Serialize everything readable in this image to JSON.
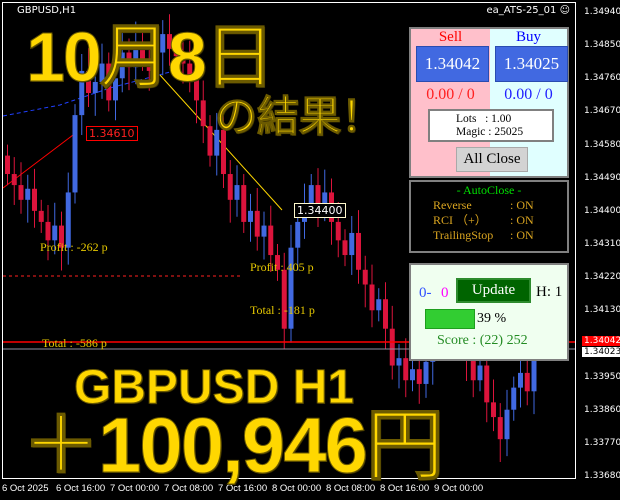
{
  "header": {
    "symbol": "GBPUSD,H1",
    "ea_name": "ea_ATS-25_01 ☺"
  },
  "price_axis": {
    "labels": [
      "1.34940",
      "1.34850",
      "1.34760",
      "1.34670",
      "1.34580",
      "1.34490",
      "1.34400",
      "1.34310",
      "1.34220",
      "1.34130",
      "1.33950",
      "1.33860",
      "1.33770",
      "1.33680"
    ],
    "bid": "1.34042",
    "ask": "1.34023",
    "bid_color": "#ff0000"
  },
  "time_axis": {
    "labels": [
      "6 Oct 2025",
      "6 Oct 16:00",
      "7 Oct 00:00",
      "7 Oct 08:00",
      "7 Oct 16:00",
      "8 Oct 00:00",
      "8 Oct 08:00",
      "8 Oct 16:00",
      "9 Oct 00:00"
    ]
  },
  "candles": {
    "up_color": "#4169e1",
    "down_color": "#dc143c",
    "closes": [
      1.345,
      1.3447,
      1.3443,
      1.3446,
      1.344,
      1.3437,
      1.3432,
      1.3436,
      1.343,
      1.3445,
      1.3466,
      1.3478,
      1.3472,
      1.3475,
      1.348,
      1.347,
      1.3476,
      1.3483,
      1.3479,
      1.3486,
      1.3481,
      1.3478,
      1.3483,
      1.3488,
      1.3484,
      1.3482,
      1.348,
      1.3476,
      1.347,
      1.3463,
      1.3455,
      1.3462,
      1.345,
      1.3443,
      1.3447,
      1.3437,
      1.344,
      1.3433,
      1.3436,
      1.3428,
      1.3424,
      1.3408,
      1.343,
      1.3437,
      1.3442,
      1.3447,
      1.3441,
      1.3445,
      1.3437,
      1.3432,
      1.3428,
      1.3434,
      1.3424,
      1.342,
      1.3413,
      1.3416,
      1.3408,
      1.3398,
      1.34,
      1.3394,
      1.3397,
      1.3393,
      1.3399,
      1.3406,
      1.3412,
      1.3418,
      1.341,
      1.3405,
      1.34,
      1.3394,
      1.3398,
      1.3388,
      1.3384,
      1.3378,
      1.3386,
      1.3392,
      1.3396,
      1.3391,
      1.3402
    ]
  },
  "annotations": {
    "price1": "1.34610",
    "price2": "1.34400",
    "profit1": "Profit : -262 p",
    "profit2": "Profit : 405 p",
    "total1": "Total : -181 p",
    "total2": "Total : -586 p"
  },
  "overlay": {
    "date": "10月8日",
    "result": "の結果！",
    "pair": "GBPUSD H1",
    "amount": "＋100,946円"
  },
  "trade_panel": {
    "sell_title": "Sell",
    "buy_title": "Buy",
    "sell_price": "1.34042",
    "buy_price": "1.34025",
    "sell_pl": "0.00 / 0",
    "buy_pl": "0.00 / 0",
    "lots": "Lots   : 1.00",
    "magic": "Magic : 25025",
    "all_close": "All Close"
  },
  "autoclose": {
    "title": "- AutoClose -",
    "rows": [
      {
        "label": "Reverse",
        "value": ": ON"
      },
      {
        "label": "RCI （+）",
        "value": ": ON"
      },
      {
        "label": "TrailingStop",
        "value": ": ON"
      }
    ]
  },
  "status_panel": {
    "count_buy": "0-",
    "count_sell": "0",
    "update": "Update",
    "h": "H: 1",
    "progress": 39,
    "progress_label": "39 %",
    "score": "Score : (22) 252"
  }
}
